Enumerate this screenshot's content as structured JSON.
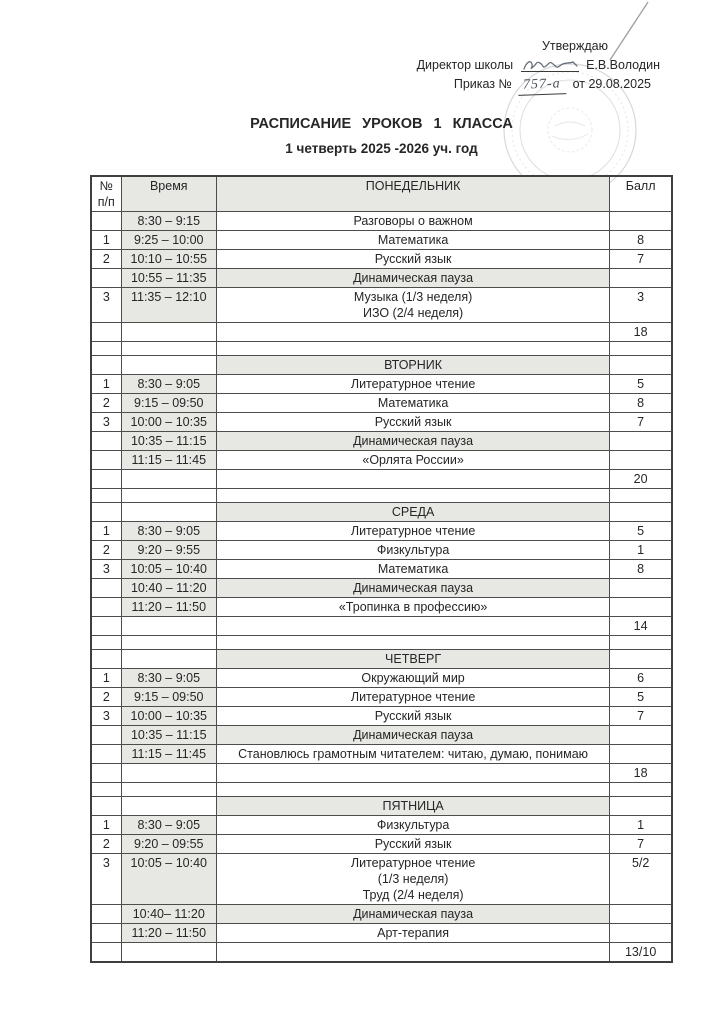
{
  "approval": {
    "approve_label": "Утверждаю",
    "director_prefix": "Директор школы",
    "director_name": "Е.В.Володин",
    "order_prefix": "Приказ №",
    "order_number_handwritten": "757-а",
    "order_suffix": "от 29.08.2025"
  },
  "title": "РАСПИСАНИЕ УРОКОВ 1 КЛАССА",
  "subtitle": "1 четверть 2025 -2026 уч. год",
  "table": {
    "header": {
      "num": "№\nп/п",
      "time": "Время",
      "day": "ПОНЕДЕЛЬНИК",
      "score": "Балл"
    },
    "rows": [
      {
        "kind": "lesson",
        "num": "",
        "time": "8:30 – 9:15",
        "subject": "Разговоры о важном",
        "score": ""
      },
      {
        "kind": "lesson",
        "num": "1",
        "time": "9:25 – 10:00",
        "subject": "Математика",
        "score": "8"
      },
      {
        "kind": "lesson",
        "num": "2",
        "time": "10:10 – 10:55",
        "subject": "Русский язык",
        "score": "7"
      },
      {
        "kind": "pause",
        "num": "",
        "time": "10:55 – 11:35",
        "subject": "Динамическая пауза",
        "score": ""
      },
      {
        "kind": "lesson",
        "num": "3",
        "time": "11:35 – 12:10",
        "subject": "Музыка (1/3 неделя)\nИЗО (2/4 неделя)",
        "score": "3"
      },
      {
        "kind": "total",
        "num": "",
        "time": "",
        "subject": "",
        "score": "18"
      },
      {
        "kind": "blank",
        "num": "",
        "time": "",
        "subject": "",
        "score": ""
      },
      {
        "kind": "day",
        "num": "",
        "time": "",
        "subject": "ВТОРНИК",
        "score": ""
      },
      {
        "kind": "lesson",
        "num": "1",
        "time": "8:30 – 9:05",
        "subject": "Литературное чтение",
        "score": "5"
      },
      {
        "kind": "lesson",
        "num": "2",
        "time": "9:15 – 09:50",
        "subject": "Математика",
        "score": "8"
      },
      {
        "kind": "lesson",
        "num": "3",
        "time": "10:00 – 10:35",
        "subject": "Русский язык",
        "score": "7"
      },
      {
        "kind": "pause",
        "num": "",
        "time": "10:35 – 11:15",
        "subject": "Динамическая пауза",
        "score": ""
      },
      {
        "kind": "lesson",
        "num": "",
        "time": "11:15 – 11:45",
        "subject": "«Орлята России»",
        "score": ""
      },
      {
        "kind": "total",
        "num": "",
        "time": "",
        "subject": "",
        "score": "20"
      },
      {
        "kind": "blank",
        "num": "",
        "time": "",
        "subject": "",
        "score": ""
      },
      {
        "kind": "day",
        "num": "",
        "time": "",
        "subject": "СРЕДА",
        "score": ""
      },
      {
        "kind": "lesson",
        "num": "1",
        "time": "8:30 – 9:05",
        "subject": "Литературное чтение",
        "score": "5"
      },
      {
        "kind": "lesson",
        "num": "2",
        "time": "9:20 – 9:55",
        "subject": "Физкультура",
        "score": "1"
      },
      {
        "kind": "lesson",
        "num": "3",
        "time": "10:05 – 10:40",
        "subject": "Математика",
        "score": "8"
      },
      {
        "kind": "pause",
        "num": "",
        "time": "10:40 – 11:20",
        "subject": "Динамическая пауза",
        "score": ""
      },
      {
        "kind": "lesson",
        "num": "",
        "time": "11:20 – 11:50",
        "subject": "«Тропинка в профессию»",
        "score": ""
      },
      {
        "kind": "total",
        "num": "",
        "time": "",
        "subject": "",
        "score": "14"
      },
      {
        "kind": "blank",
        "num": "",
        "time": "",
        "subject": "",
        "score": ""
      },
      {
        "kind": "day",
        "num": "",
        "time": "",
        "subject": "ЧЕТВЕРГ",
        "score": ""
      },
      {
        "kind": "lesson",
        "num": "1",
        "time": "8:30 – 9:05",
        "subject": "Окружающий мир",
        "score": "6"
      },
      {
        "kind": "lesson",
        "num": "2",
        "time": "9:15 – 09:50",
        "subject": "Литературное чтение",
        "score": "5"
      },
      {
        "kind": "lesson",
        "num": "3",
        "time": "10:00 – 10:35",
        "subject": "Русский язык",
        "score": "7"
      },
      {
        "kind": "pause",
        "num": "",
        "time": "10:35 – 11:15",
        "subject": "Динамическая пауза",
        "score": ""
      },
      {
        "kind": "lesson",
        "num": "",
        "time": "11:15 – 11:45",
        "subject": "Становлюсь грамотным читателем: читаю, думаю, понимаю",
        "score": ""
      },
      {
        "kind": "total",
        "num": "",
        "time": "",
        "subject": "",
        "score": "18"
      },
      {
        "kind": "blank",
        "num": "",
        "time": "",
        "subject": "",
        "score": ""
      },
      {
        "kind": "day",
        "num": "",
        "time": "",
        "subject": "ПЯТНИЦА",
        "score": ""
      },
      {
        "kind": "lesson",
        "num": "1",
        "time": "8:30 – 9:05",
        "subject": "Физкультура",
        "score": "1"
      },
      {
        "kind": "lesson",
        "num": "2",
        "time": "9:20 – 09:55",
        "subject": "Русский язык",
        "score": "7"
      },
      {
        "kind": "lesson",
        "num": "3",
        "time": "10:05 – 10:40",
        "subject": "Литературное чтение\n(1/3 неделя)\nТруд (2/4 неделя)",
        "score": "5/2"
      },
      {
        "kind": "pause",
        "num": "",
        "time": "10:40– 11:20",
        "subject": "Динамическая пауза",
        "score": ""
      },
      {
        "kind": "lesson",
        "num": "",
        "time": "11:20 – 11:50",
        "subject": "Арт-терапия",
        "score": ""
      },
      {
        "kind": "total",
        "num": "",
        "time": "",
        "subject": "",
        "score": "13/10"
      }
    ]
  },
  "colors": {
    "shade": "#e7e7e4",
    "border": "#4d4d4d",
    "ink": "#262626",
    "pen": "#4e545b",
    "stamp": "#aab3ba"
  }
}
